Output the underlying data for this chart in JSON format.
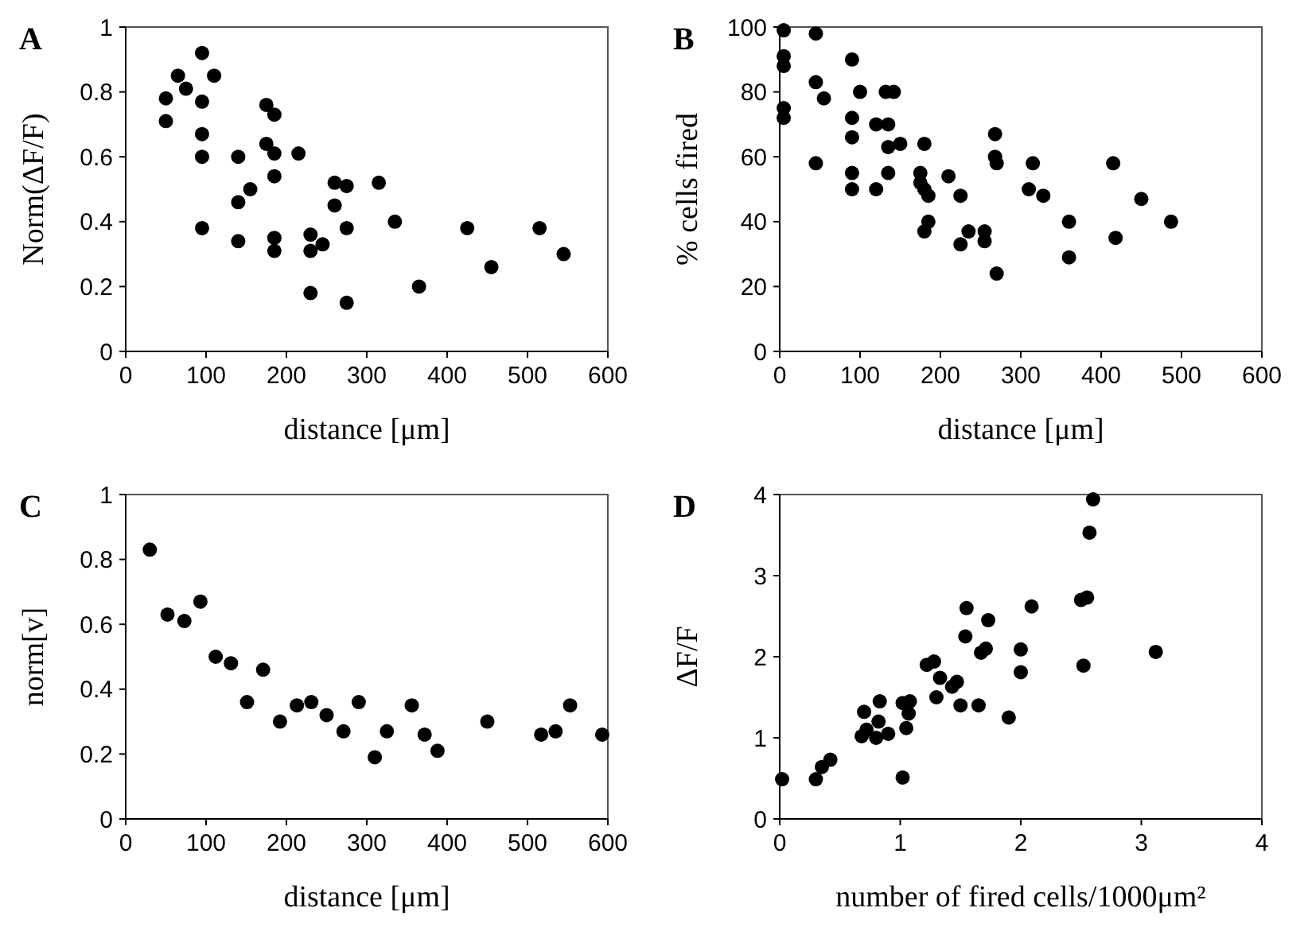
{
  "chart_data": [
    {
      "type": "scatter",
      "title": "A",
      "xlabel": "distance [μm]",
      "ylabel": "Norm(ΔF/F)",
      "xlim": [
        0,
        600
      ],
      "xticks": [
        0,
        100,
        200,
        300,
        400,
        500,
        600
      ],
      "ylim": [
        0,
        1
      ],
      "yticks": [
        0,
        {
          "value": 0.2,
          "label": "0.2"
        },
        {
          "value": 0.4,
          "label": "0.4"
        },
        {
          "value": 0.6,
          "label": "0.6"
        },
        {
          "value": 0.8,
          "label": "0.8"
        },
        1
      ],
      "marker": "circle",
      "series": [
        {
          "color": "#000000",
          "x": [
            50,
            50,
            65,
            75,
            95,
            95,
            95,
            95,
            95,
            110,
            140,
            140,
            140,
            155,
            175,
            175,
            185,
            185,
            185,
            185,
            185,
            215,
            230,
            230,
            230,
            245,
            260,
            260,
            275,
            275,
            275,
            315,
            335,
            365,
            425,
            455,
            515,
            545
          ],
          "values": [
            0.78,
            0.71,
            0.85,
            0.81,
            0.92,
            0.77,
            0.67,
            0.6,
            0.38,
            0.85,
            0.6,
            0.46,
            0.34,
            0.5,
            0.76,
            0.64,
            0.73,
            0.61,
            0.54,
            0.35,
            0.31,
            0.61,
            0.36,
            0.31,
            0.18,
            0.33,
            0.52,
            0.45,
            0.51,
            0.38,
            0.15,
            0.52,
            0.4,
            0.2,
            0.38,
            0.26,
            0.38,
            0.3
          ]
        }
      ]
    },
    {
      "type": "scatter",
      "title": "B",
      "xlabel": "distance [μm]",
      "ylabel": "% cells fired",
      "xlim": [
        0,
        600
      ],
      "xticks": [
        0,
        100,
        200,
        300,
        400,
        500,
        600
      ],
      "ylim": [
        0,
        100
      ],
      "yticks": [
        0,
        20,
        40,
        60,
        80,
        100
      ],
      "marker": "circle",
      "series": [
        {
          "color": "#000000",
          "x": [
            5,
            5,
            5,
            5,
            5,
            45,
            45,
            45,
            55,
            90,
            90,
            90,
            90,
            90,
            100,
            120,
            120,
            132,
            135,
            135,
            135,
            142,
            150,
            175,
            175,
            180,
            180,
            180,
            185,
            185,
            210,
            225,
            225,
            235,
            255,
            255,
            268,
            268,
            270,
            270,
            310,
            315,
            328,
            360,
            360,
            415,
            418,
            450,
            487
          ],
          "values": [
            99,
            91,
            88,
            75,
            72,
            98,
            83,
            58,
            78,
            90,
            72,
            66,
            55,
            50,
            80,
            70,
            50,
            80,
            70,
            63,
            55,
            80,
            64,
            55,
            52,
            64,
            50,
            37,
            48,
            40,
            54,
            48,
            33,
            37,
            37,
            34,
            67,
            60,
            58,
            24,
            50,
            58,
            48,
            40,
            29,
            58,
            35,
            47,
            40
          ]
        }
      ]
    },
    {
      "type": "scatter",
      "title": "C",
      "xlabel": "distance [μm]",
      "ylabel": "norm[v]",
      "xlim": [
        0,
        600
      ],
      "xticks": [
        0,
        100,
        200,
        300,
        400,
        500,
        600
      ],
      "ylim": [
        0,
        1
      ],
      "yticks": [
        0,
        {
          "value": 0.2,
          "label": "0.2"
        },
        {
          "value": 0.4,
          "label": "0.4"
        },
        {
          "value": 0.6,
          "label": "0.6"
        },
        {
          "value": 0.8,
          "label": "0.8"
        },
        1
      ],
      "marker": "circle",
      "series": [
        {
          "color": "#000000",
          "x": [
            30,
            52,
            73,
            93,
            112,
            131,
            151,
            171,
            192,
            213,
            231,
            250,
            271,
            290,
            310,
            325,
            356,
            372,
            388,
            450,
            517,
            535,
            553,
            593
          ],
          "values": [
            0.83,
            0.63,
            0.61,
            0.67,
            0.5,
            0.48,
            0.36,
            0.46,
            0.3,
            0.35,
            0.36,
            0.32,
            0.27,
            0.36,
            0.19,
            0.27,
            0.35,
            0.26,
            0.21,
            0.3,
            0.26,
            0.27,
            0.35,
            0.26
          ]
        }
      ]
    },
    {
      "type": "scatter",
      "title": "D",
      "xlabel": "number of fired cells/1000μm²",
      "ylabel": "ΔF/F",
      "xlim": [
        0,
        4
      ],
      "xticks": [
        0,
        1,
        2,
        3,
        4
      ],
      "ylim": [
        0,
        4
      ],
      "yticks": [
        0,
        1,
        2,
        3,
        4
      ],
      "marker": "circle",
      "series": [
        {
          "color": "#000000",
          "x": [
            0.02,
            0.3,
            0.35,
            0.42,
            0.68,
            0.7,
            0.72,
            0.8,
            0.82,
            0.83,
            0.9,
            1.02,
            1.02,
            1.05,
            1.07,
            1.08,
            1.22,
            1.28,
            1.3,
            1.33,
            1.43,
            1.47,
            1.5,
            1.54,
            1.55,
            1.65,
            1.67,
            1.71,
            1.73,
            1.9,
            2.0,
            2.0,
            2.09,
            2.5,
            2.52,
            2.55,
            2.57,
            2.6,
            3.12
          ],
          "values": [
            0.49,
            0.49,
            0.64,
            0.73,
            1.02,
            1.32,
            1.1,
            1.0,
            1.2,
            1.45,
            1.05,
            1.43,
            0.51,
            1.12,
            1.3,
            1.45,
            1.9,
            1.94,
            1.5,
            1.74,
            1.63,
            1.69,
            1.4,
            2.25,
            2.6,
            1.4,
            2.05,
            2.1,
            2.45,
            1.25,
            2.09,
            1.81,
            2.62,
            2.7,
            1.89,
            2.73,
            3.53,
            3.94,
            2.06
          ]
        }
      ]
    }
  ]
}
